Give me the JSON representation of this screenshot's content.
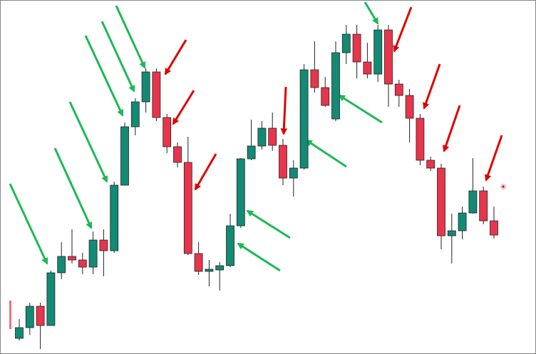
{
  "chart_data": {
    "type": "candlestick",
    "open": [
      22,
      37,
      67,
      40,
      114,
      137,
      132,
      122,
      160,
      145,
      237,
      319,
      354,
      396,
      332,
      291,
      269,
      141,
      116,
      118,
      124,
      180,
      274,
      292,
      317,
      293,
      247,
      261,
      399,
      374,
      330,
      423,
      449,
      410,
      393,
      455,
      379,
      363,
      331,
      272,
      261,
      166,
      173,
      198,
      229,
      187
    ],
    "high": [
      49,
      72,
      72,
      117,
      157,
      175,
      142,
      172,
      175,
      242,
      325,
      359,
      401,
      401,
      337,
      297,
      305,
      157,
      132,
      129,
      197,
      275,
      329,
      327,
      339,
      302,
      272,
      407,
      439,
      389,
      439,
      462,
      462,
      437,
      462,
      462,
      385,
      372,
      337,
      277,
      267,
      197,
      207,
      275,
      235,
      207
    ],
    "low": [
      19,
      27,
      7,
      40,
      105,
      127,
      112,
      112,
      109,
      142,
      237,
      307,
      339,
      327,
      282,
      262,
      139,
      111,
      95,
      89,
      122,
      177,
      272,
      287,
      285,
      237,
      221,
      259,
      367,
      347,
      327,
      407,
      387,
      387,
      382,
      347,
      347,
      297,
      265,
      257,
      147,
      127,
      161,
      197,
      182,
      162
    ],
    "close": [
      37,
      67,
      40,
      114,
      137,
      132,
      122,
      160,
      145,
      237,
      319,
      354,
      396,
      332,
      291,
      269,
      141,
      116,
      119,
      124,
      180,
      274,
      292,
      317,
      293,
      247,
      261,
      399,
      374,
      349,
      423,
      449,
      410,
      393,
      455,
      379,
      363,
      331,
      272,
      261,
      166,
      173,
      198,
      229,
      187,
      167
    ],
    "up_color": "#138a73",
    "down_color": "#e8354c",
    "ylim": [
      0,
      497
    ]
  }
}
